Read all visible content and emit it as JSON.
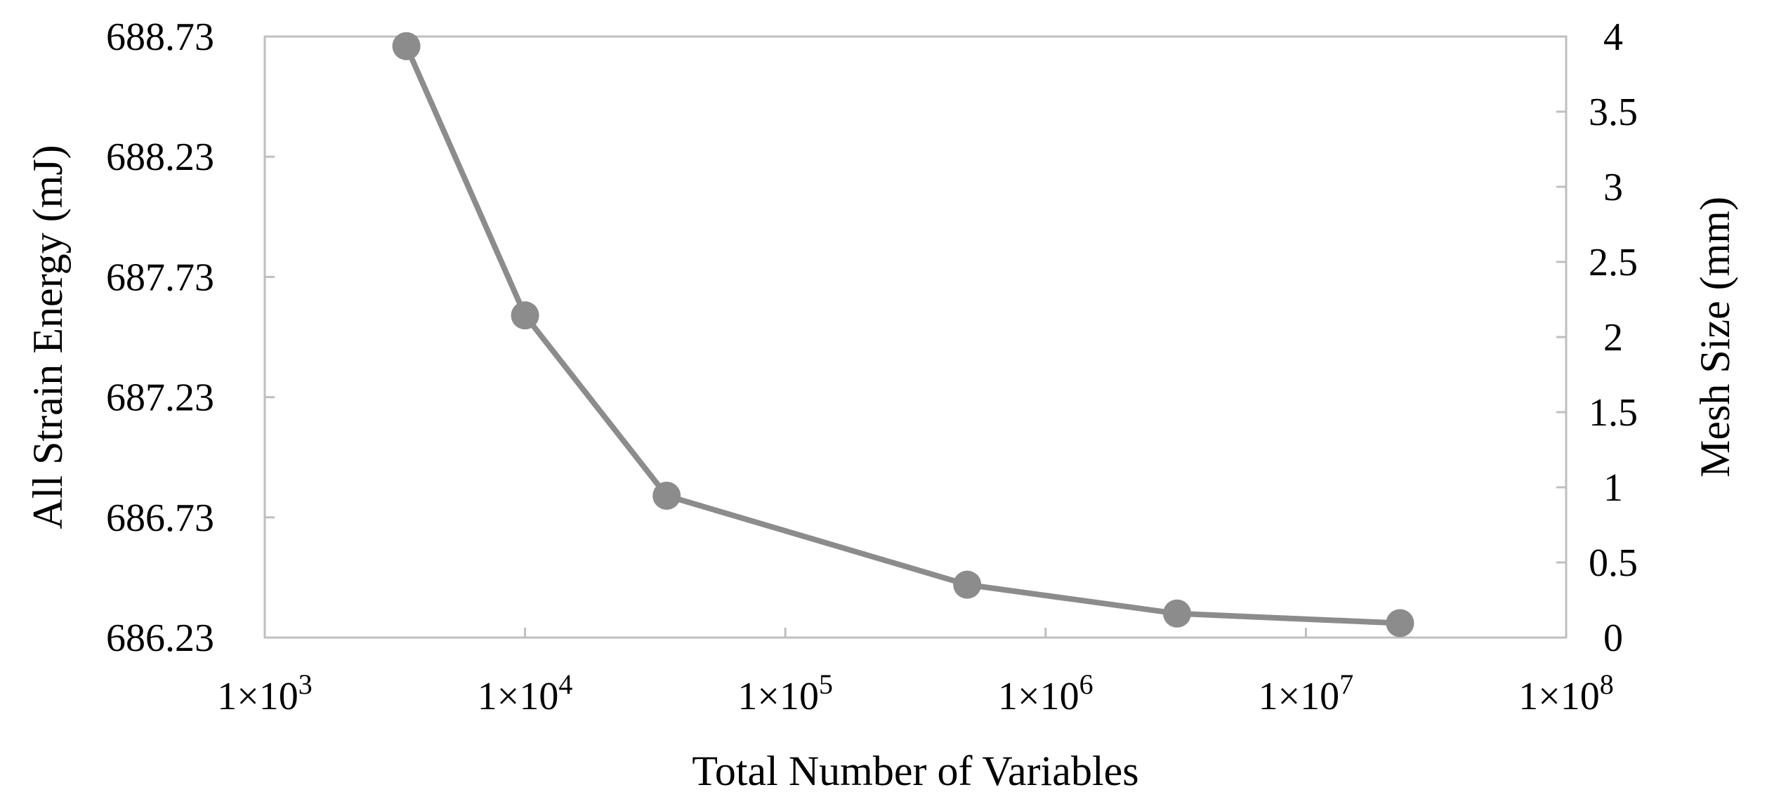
{
  "chart_data": {
    "type": "line",
    "title": "",
    "xlabel": "Total Number of Variables",
    "ylabel": "All Strain Energy (mJ)",
    "y2label": "Mesh Size (mm)",
    "x_scale": "log",
    "xlim": [
      1000,
      100000000
    ],
    "ylim": [
      686.23,
      688.73
    ],
    "y2lim": [
      0,
      4
    ],
    "x_ticks": [
      1000,
      10000,
      100000,
      1000000,
      10000000,
      100000000
    ],
    "x_tick_labels": [
      {
        "base": "1×10",
        "exp": "3"
      },
      {
        "base": "1×10",
        "exp": "4"
      },
      {
        "base": "1×10",
        "exp": "5"
      },
      {
        "base": "1×10",
        "exp": "6"
      },
      {
        "base": "1×10",
        "exp": "7"
      },
      {
        "base": "1×10",
        "exp": "8"
      }
    ],
    "y_ticks": [
      686.23,
      686.73,
      687.23,
      687.73,
      688.23,
      688.73
    ],
    "y_tick_labels": [
      "686.23",
      "686.73",
      "687.23",
      "687.73",
      "688.23",
      "688.73"
    ],
    "y2_ticks": [
      0,
      0.5,
      1,
      1.5,
      2,
      2.5,
      3,
      3.5,
      4
    ],
    "y2_tick_labels": [
      "0",
      "0.5",
      "1",
      "1.5",
      "2",
      "2.5",
      "3",
      "3.5",
      "4"
    ],
    "grid": false,
    "legend": "none",
    "series": [
      {
        "axis": "left",
        "color": "#8c8c8c",
        "x": [
          3500,
          10000,
          35000,
          500000,
          3200000,
          23000000
        ],
        "y": [
          688.69,
          687.57,
          686.82,
          686.45,
          686.33,
          686.29
        ]
      }
    ],
    "colors": {
      "frame": "#bfbfbf",
      "series": "#8c8c8c",
      "text": "#000000"
    }
  }
}
